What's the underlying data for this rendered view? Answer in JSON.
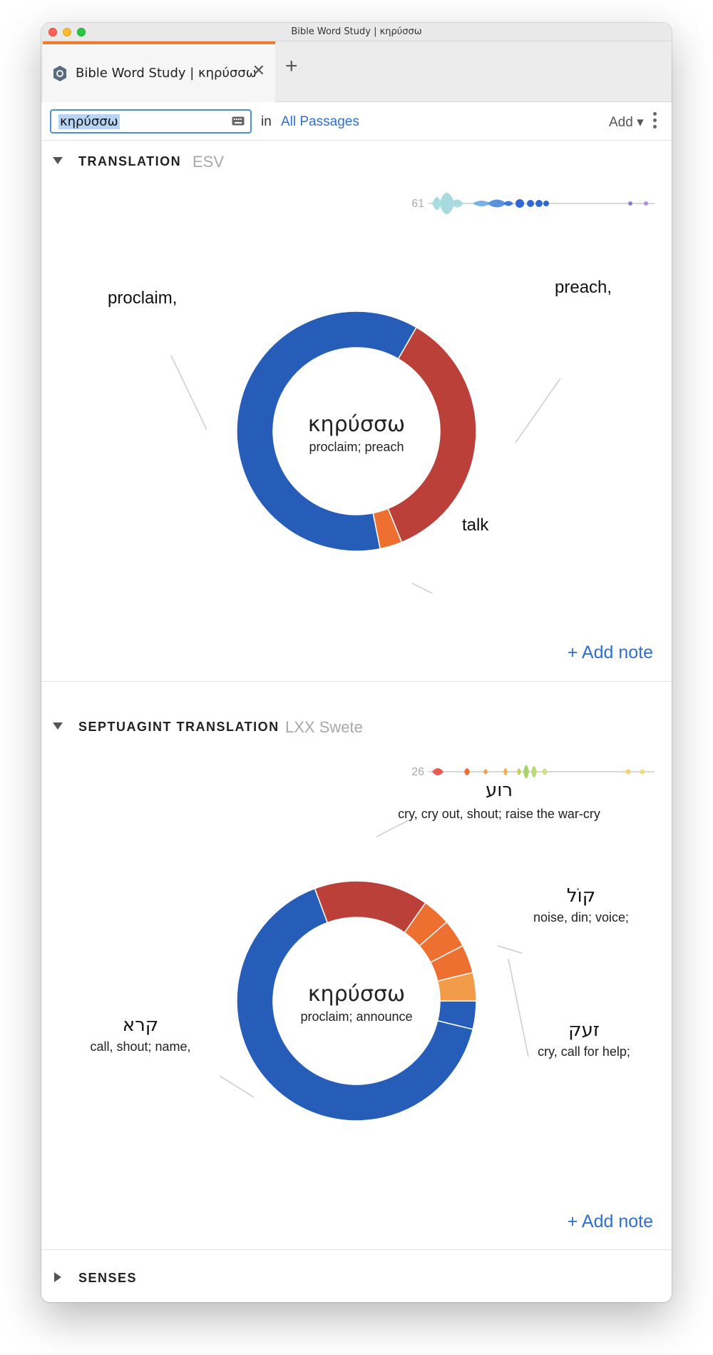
{
  "window": {
    "title": "Bible Word Study | κηρύσσω"
  },
  "tab": {
    "label": "Bible Word Study | κηρύσσω",
    "close_glyph": "✕",
    "add_glyph": "+"
  },
  "toolbar": {
    "search_value": "κηρύσσω",
    "in_label": "in",
    "passages_label": "All Passages",
    "add_label": "Add ▾"
  },
  "sections": [
    {
      "title": "TRANSLATION",
      "source": "ESV",
      "add_note": "+ Add note"
    },
    {
      "title": "SEPTUAGINT TRANSLATION",
      "source": "LXX Swete",
      "add_note": "+ Add note"
    },
    {
      "title": "SENSES"
    }
  ],
  "chart_data": [
    {
      "type": "pie",
      "center_word": "κηρύσσω",
      "center_gloss": "proclaim; preach",
      "occurrence_count": "61",
      "slices": [
        {
          "label": "proclaim,",
          "value": 61.5,
          "color": "#255db9"
        },
        {
          "label": "preach,",
          "value": 35.5,
          "color": "#bb403a"
        },
        {
          "label": "talk",
          "value": 3.0,
          "color": "#ee7031"
        }
      ]
    },
    {
      "type": "pie",
      "center_word": "κηρύσσω",
      "center_gloss": "proclaim; announce",
      "occurrence_count": "26",
      "slices": [
        {
          "value": 3.8,
          "color": "#255db9"
        },
        {
          "label": "קרא",
          "gloss": "call, shout; name,",
          "value": 65.4,
          "color": "#255db9"
        },
        {
          "label": "רוע",
          "gloss": "cry, cry out, shout; raise the war-cry",
          "value": 15.4,
          "color": "#bb403a"
        },
        {
          "label": "קוֹל",
          "gloss": "noise, din; voice;",
          "value": 3.8,
          "color": "#ee7031"
        },
        {
          "value": 3.8,
          "color": "#ee7031"
        },
        {
          "value": 3.8,
          "color": "#ee7031"
        },
        {
          "label": "זעק",
          "gloss": "cry, call for help;",
          "value": 3.8,
          "color": "#f29c4a"
        }
      ]
    }
  ]
}
